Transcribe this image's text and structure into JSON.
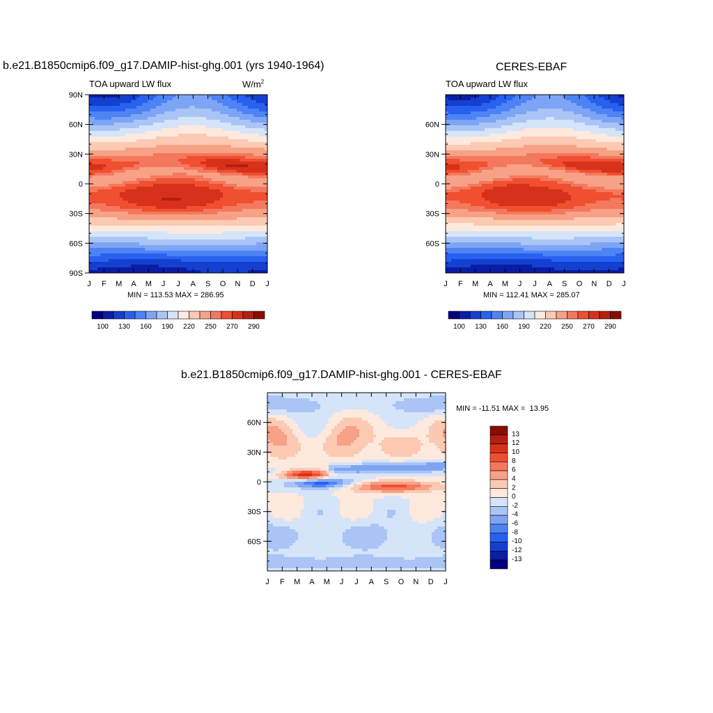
{
  "chart_data": [
    {
      "type": "heatmap",
      "id": "model",
      "title": "b.e21.B1850cmip6.f09_g17.DAMIP-hist-ghg.001 (yrs 1940-1964)",
      "left_label": "TOA upward LW flux",
      "units_base": "W/m",
      "units_exp": "2",
      "stats": "MIN = 113.53 MAX = 286.95",
      "x_ticks": [
        "J",
        "F",
        "M",
        "A",
        "M",
        "J",
        "J",
        "A",
        "S",
        "O",
        "N",
        "D",
        "J"
      ],
      "y_ticks": [
        "90N",
        "60N",
        "30N",
        "0",
        "30S",
        "60S",
        "90S"
      ],
      "y_values": [
        90,
        60,
        30,
        0,
        -30,
        -60,
        -90
      ],
      "ylim": [
        -90,
        90
      ],
      "colorbar_levels": [
        100,
        130,
        160,
        190,
        220,
        250,
        270,
        290
      ],
      "colorbar_labels": [
        "100",
        "130",
        "160",
        "190",
        "220",
        "250",
        "270",
        "290"
      ],
      "field": "model"
    },
    {
      "type": "heatmap",
      "id": "obs",
      "title": "CERES-EBAF",
      "left_label": "TOA upward LW flux",
      "stats": "MIN = 112.41 MAX = 285.07",
      "x_ticks": [
        "J",
        "F",
        "M",
        "A",
        "M",
        "J",
        "J",
        "A",
        "S",
        "O",
        "N",
        "D",
        "J"
      ],
      "y_ticks": [
        "60N",
        "30N",
        "0",
        "30S",
        "60S"
      ],
      "y_values": [
        60,
        30,
        0,
        -30,
        -60
      ],
      "ylim": [
        -90,
        90
      ],
      "colorbar_levels": [
        100,
        130,
        160,
        190,
        220,
        250,
        270,
        290
      ],
      "colorbar_labels": [
        "100",
        "130",
        "160",
        "190",
        "220",
        "250",
        "270",
        "290"
      ],
      "field": "obs"
    },
    {
      "type": "heatmap",
      "id": "diff",
      "title": "b.e21.B1850cmip6.f09_g17.DAMIP-hist-ghg.001 - CERES-EBAF",
      "stats": "MIN = -11.51 MAX =  13.95",
      "x_ticks": [
        "J",
        "F",
        "M",
        "A",
        "M",
        "J",
        "J",
        "A",
        "S",
        "O",
        "N",
        "D",
        "J"
      ],
      "y_ticks": [
        "60N",
        "30N",
        "0",
        "30S",
        "60S"
      ],
      "y_values": [
        60,
        30,
        0,
        -30,
        -60
      ],
      "ylim": [
        -90,
        90
      ],
      "colorbar_labels": [
        "13",
        "12",
        "10",
        "8",
        "6",
        "4",
        "2",
        "0",
        "-2",
        "-4",
        "-6",
        "-8",
        "-10",
        "-12",
        "-13"
      ],
      "field": "diff"
    }
  ],
  "colors": {
    "abs_scale": [
      "#00007f",
      "#0b1ca5",
      "#1440cf",
      "#2861ef",
      "#4d83f4",
      "#7ea5f5",
      "#aac5f5",
      "#d5e4f8",
      "#fde9de",
      "#fcc9b2",
      "#f7a186",
      "#f4785e",
      "#f04f30",
      "#d8311b",
      "#b51f10",
      "#8a0c04"
    ],
    "diff_scale": [
      "#8a0c04",
      "#b51f10",
      "#d8311b",
      "#f04f30",
      "#f4785e",
      "#f7a186",
      "#fcc9b2",
      "#fde9de",
      "#d5e4f8",
      "#aac5f5",
      "#7ea5f5",
      "#4d83f4",
      "#2861ef",
      "#1440cf",
      "#0b1ca5",
      "#00007f"
    ]
  }
}
